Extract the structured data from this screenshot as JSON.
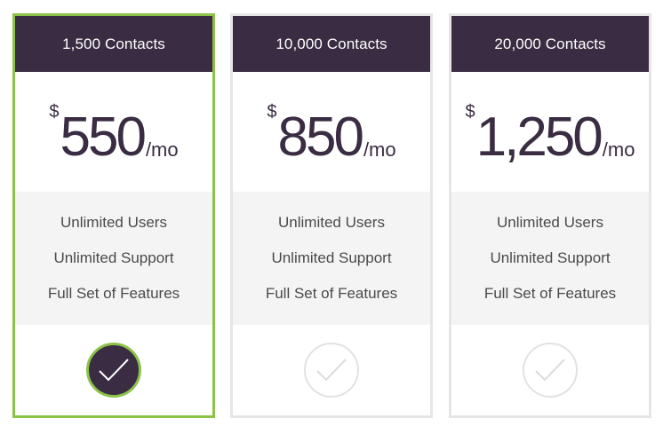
{
  "colors": {
    "header_bg": "#3a2c42",
    "selected_border": "#8bc34a",
    "card_border": "#e6e6e6",
    "features_bg": "#f4f4f4"
  },
  "plans": [
    {
      "header": "1,500 Contacts",
      "currency": "$",
      "amount": "550",
      "period": "/mo",
      "features": [
        "Unlimited Users",
        "Unlimited Support",
        "Full Set of Features"
      ],
      "selected": true,
      "icon": "check-icon"
    },
    {
      "header": "10,000 Contacts",
      "currency": "$",
      "amount": "850",
      "period": "/mo",
      "features": [
        "Unlimited Users",
        "Unlimited Support",
        "Full Set of Features"
      ],
      "selected": false,
      "icon": "check-icon"
    },
    {
      "header": "20,000 Contacts",
      "currency": "$",
      "amount": "1,250",
      "period": "/mo",
      "features": [
        "Unlimited Users",
        "Unlimited Support",
        "Full Set of Features"
      ],
      "selected": false,
      "icon": "check-icon"
    }
  ]
}
